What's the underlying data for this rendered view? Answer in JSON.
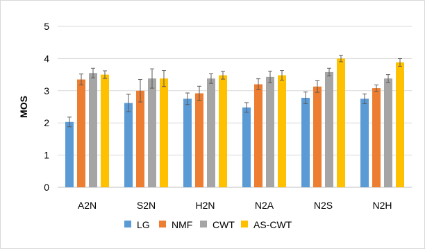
{
  "chart_data": {
    "type": "bar",
    "title": "",
    "xlabel": "",
    "ylabel": "MOS",
    "ylim": [
      0,
      5
    ],
    "yticks": [
      0,
      1,
      2,
      3,
      4,
      5
    ],
    "grid": true,
    "legend": "bottom",
    "error_bars": true,
    "categories": [
      "A2N",
      "S2N",
      "H2N",
      "N2A",
      "N2S",
      "N2H"
    ],
    "series": [
      {
        "name": "LG",
        "color": "#5b9bd5",
        "values": [
          2.03,
          2.62,
          2.75,
          2.48,
          2.78,
          2.75
        ],
        "errors": [
          0.15,
          0.27,
          0.18,
          0.15,
          0.18,
          0.15
        ]
      },
      {
        "name": "NMF",
        "color": "#ed7d31",
        "values": [
          3.35,
          3.0,
          2.92,
          3.2,
          3.13,
          3.08
        ],
        "errors": [
          0.17,
          0.35,
          0.22,
          0.17,
          0.18,
          0.1
        ]
      },
      {
        "name": "CWT",
        "color": "#a5a5a5",
        "values": [
          3.55,
          3.38,
          3.38,
          3.43,
          3.58,
          3.38
        ],
        "errors": [
          0.15,
          0.3,
          0.15,
          0.18,
          0.12,
          0.12
        ]
      },
      {
        "name": "AS-CWT",
        "color": "#ffc000",
        "values": [
          3.5,
          3.38,
          3.48,
          3.48,
          4.0,
          3.88
        ],
        "errors": [
          0.12,
          0.25,
          0.12,
          0.15,
          0.1,
          0.12
        ]
      }
    ]
  }
}
